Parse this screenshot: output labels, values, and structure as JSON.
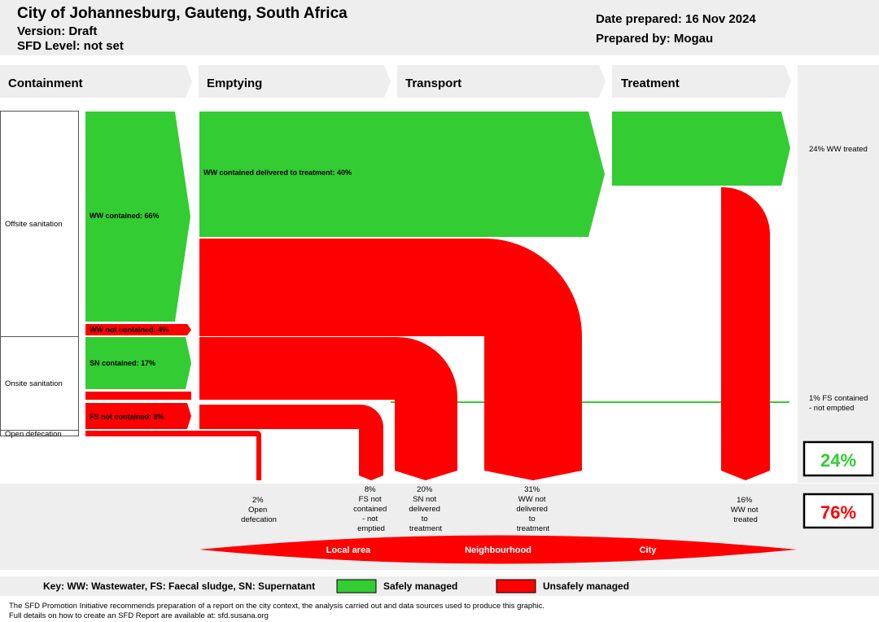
{
  "header": {
    "title": "City of Johannesburg, Gauteng, South Africa",
    "version": "Version: Draft",
    "sfd_level": "SFD Level: not set",
    "date_prepared": "Date prepared: 16 Nov 2024",
    "prepared_by": "Prepared by: Mogau"
  },
  "stages": [
    "Containment",
    "Emptying",
    "Transport",
    "Treatment"
  ],
  "rows": {
    "offsite": "Offsite sanitation",
    "onsite": "Onsite sanitation",
    "open_defecation": "Open defecation"
  },
  "flow_labels": {
    "ww_contained": "WW contained: 66%",
    "ww_not_contained": "WW not contained: 4%",
    "sn_contained": "SN contained: 17%",
    "fs_not_contained": "FS not contained: 8%",
    "ww_delivered": "WW contained delivered to treatment: 40%"
  },
  "right_labels": {
    "ww_treated": "24% WW treated",
    "fs_contained_line1": "1% FS contained",
    "fs_contained_line2": "- not emptied"
  },
  "totals": {
    "safe": "24%",
    "unsafe": "76%",
    "safe_color": "#33cc33",
    "unsafe_color": "#ff0000"
  },
  "outlets": [
    {
      "lines": [
        "2%",
        "Open",
        "defecation"
      ]
    },
    {
      "lines": [
        "8%",
        "FS not",
        "contained",
        "- not",
        "emptied"
      ]
    },
    {
      "lines": [
        "20%",
        "SN not",
        "delivered",
        "to",
        "treatment"
      ]
    },
    {
      "lines": [
        "31%",
        "WW not",
        "delivered",
        "to",
        "treatment"
      ]
    },
    {
      "lines": [
        "16%",
        "WW not",
        "treated"
      ]
    }
  ],
  "areas": [
    "Local area",
    "Neighbourhood",
    "City"
  ],
  "key": {
    "legend_text": "Key: WW: Wastewater, FS: Faecal sludge, SN: Supernatant",
    "safe": "Safely managed",
    "unsafe": "Unsafely managed"
  },
  "footer": {
    "line1": "The SFD Promotion Initiative recommends preparation of a report on the city context, the analysis carried out and data sources used to produce this graphic.",
    "line2": "Full details on how to create an SFD Report are available at: sfd.susana.org"
  },
  "colors": {
    "green": "#33cc33",
    "red": "#ff0000",
    "panel": "#eeeeee"
  }
}
